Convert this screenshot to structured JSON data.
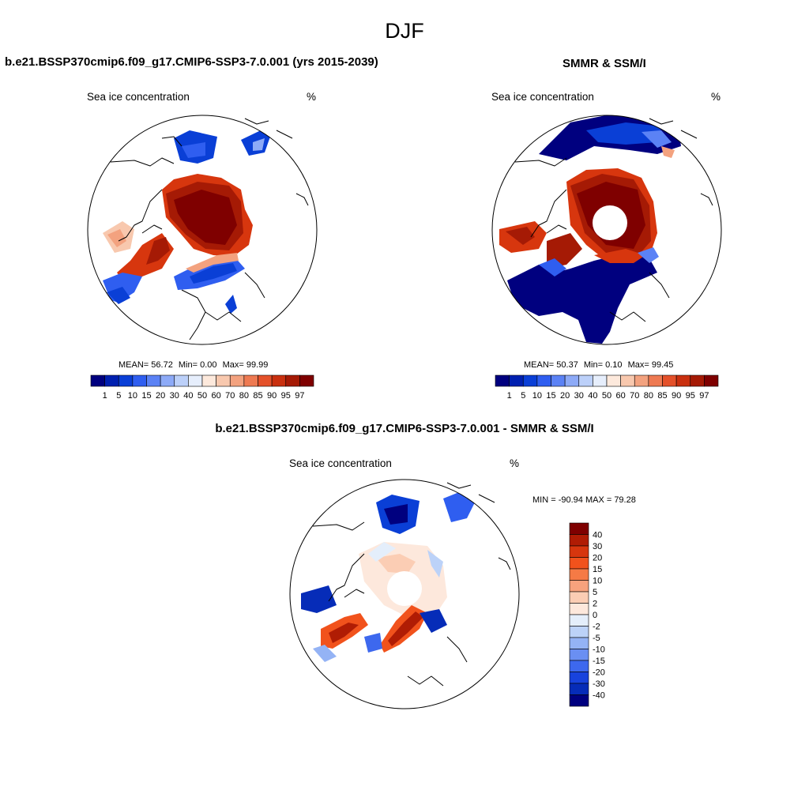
{
  "page": {
    "title": "DJF"
  },
  "panels": {
    "model": {
      "title": "b.e21.BSSP370cmip6.f09_g17.CMIP6-SSP3-7.0.001 (yrs 2015-2039)",
      "subtitle_left": "Sea ice concentration",
      "subtitle_right": "%",
      "stats": {
        "mean_label": "MEAN=",
        "mean": "56.72",
        "min_label": "Min=",
        "min": "0.00",
        "max_label": "Max=",
        "max": "99.99"
      }
    },
    "obs": {
      "title": "SMMR & SSM/I",
      "subtitle_left": "Sea ice concentration",
      "subtitle_right": "%",
      "stats": {
        "mean_label": "MEAN=",
        "mean": "50.37",
        "min_label": "Min=",
        "min": "0.10",
        "max_label": "Max=",
        "max": "99.45"
      }
    },
    "diff": {
      "title": "b.e21.BSSP370cmip6.f09_g17.CMIP6-SSP3-7.0.001 - SMMR & SSM/I",
      "subtitle_left": "Sea ice concentration",
      "subtitle_right": "%",
      "minmax": "MIN = -90.94 MAX =  79.28"
    }
  },
  "colorbars": {
    "concentration": {
      "labels": [
        "1",
        "5",
        "10",
        "15",
        "20",
        "30",
        "40",
        "50",
        "60",
        "70",
        "80",
        "85",
        "90",
        "95",
        "97"
      ],
      "colors": [
        "#00007f",
        "#0020b0",
        "#0a3fd6",
        "#2f5ef0",
        "#5b82f5",
        "#8daaf7",
        "#bcd0f9",
        "#e6eefc",
        "#fde9dc",
        "#f8c8ae",
        "#f3a27f",
        "#ee7a52",
        "#e4512a",
        "#c9300f",
        "#a51a05",
        "#7f0000"
      ]
    },
    "difference": {
      "labels": [
        "40",
        "30",
        "20",
        "15",
        "10",
        "5",
        "2",
        "0",
        "-2",
        "-5",
        "-10",
        "-15",
        "-20",
        "-30",
        "-40"
      ],
      "colors": [
        "#7f0000",
        "#b01c04",
        "#d7360e",
        "#f1521c",
        "#f57a45",
        "#f7a27d",
        "#fbcdb4",
        "#fde8dc",
        "#e4eefb",
        "#bcd2f8",
        "#94b3f5",
        "#6a8ff2",
        "#3d68ee",
        "#1843dd",
        "#062cb8",
        "#00007f"
      ]
    }
  },
  "chart_data": [
    {
      "type": "heatmap",
      "title": "b.e21.BSSP370cmip6.f09_g17.CMIP6-SSP3-7.0.001 (yrs 2015-2039)",
      "variable": "Sea ice concentration",
      "units": "%",
      "projection": "north polar stereographic",
      "mean": 56.72,
      "min": 0.0,
      "max": 99.99,
      "levels": [
        1,
        5,
        10,
        15,
        20,
        30,
        40,
        50,
        60,
        70,
        80,
        85,
        90,
        95,
        97
      ]
    },
    {
      "type": "heatmap",
      "title": "SMMR & SSM/I",
      "variable": "Sea ice concentration",
      "units": "%",
      "projection": "north polar stereographic",
      "mean": 50.37,
      "min": 0.1,
      "max": 99.45,
      "levels": [
        1,
        5,
        10,
        15,
        20,
        30,
        40,
        50,
        60,
        70,
        80,
        85,
        90,
        95,
        97
      ]
    },
    {
      "type": "heatmap",
      "title": "b.e21.BSSP370cmip6.f09_g17.CMIP6-SSP3-7.0.001 - SMMR & SSM/I",
      "variable": "Sea ice concentration",
      "units": "%",
      "projection": "north polar stereographic",
      "min": -90.94,
      "max": 79.28,
      "levels": [
        -40,
        -30,
        -20,
        -15,
        -10,
        -5,
        -2,
        0,
        2,
        5,
        10,
        15,
        20,
        30,
        40
      ]
    }
  ]
}
